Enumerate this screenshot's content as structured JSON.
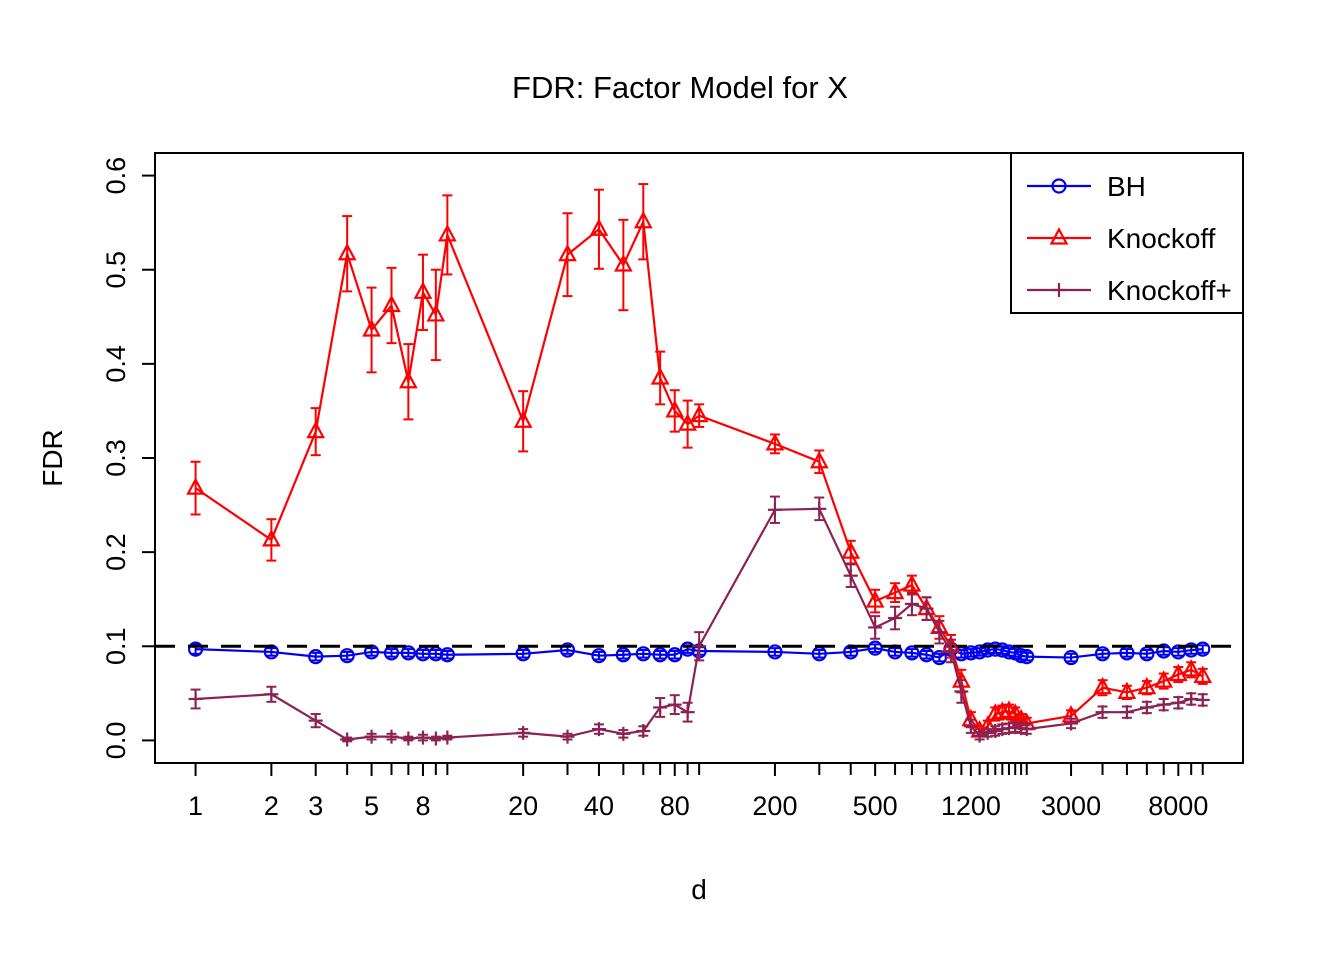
{
  "chart_data": {
    "type": "line",
    "title": "FDR: Factor Model for X",
    "xlabel": "d",
    "ylabel": "FDR",
    "x_scale": "log",
    "xlim": [
      0.69,
      14454
    ],
    "ylim": [
      -0.024,
      0.624
    ],
    "grid": false,
    "y_ticks": [
      {
        "value": 0.0,
        "label": "0.0"
      },
      {
        "value": 0.1,
        "label": "0.1"
      },
      {
        "value": 0.2,
        "label": "0.2"
      },
      {
        "value": 0.3,
        "label": "0.3"
      },
      {
        "value": 0.4,
        "label": "0.4"
      },
      {
        "value": 0.5,
        "label": "0.5"
      },
      {
        "value": 0.6,
        "label": "0.6"
      }
    ],
    "x_ticks_major": [
      {
        "value": 1,
        "label": "1"
      },
      {
        "value": 2,
        "label": "2"
      },
      {
        "value": 3,
        "label": "3"
      },
      {
        "value": 5,
        "label": "5"
      },
      {
        "value": 8,
        "label": "8"
      },
      {
        "value": 20,
        "label": "20"
      },
      {
        "value": 40,
        "label": "40"
      },
      {
        "value": 80,
        "label": "80"
      },
      {
        "value": 200,
        "label": "200"
      },
      {
        "value": 500,
        "label": "500"
      },
      {
        "value": 1200,
        "label": "1200"
      },
      {
        "value": 3000,
        "label": "3000"
      },
      {
        "value": 8000,
        "label": "8000"
      }
    ],
    "x_ticks_minor": [
      4,
      6,
      7,
      9,
      10,
      30,
      50,
      60,
      70,
      90,
      100,
      300,
      400,
      600,
      700,
      800,
      900,
      1000,
      1100,
      1300,
      1400,
      1500,
      1600,
      1700,
      1800,
      1900,
      2000,
      4000,
      5000,
      6000,
      7000,
      9000,
      10000
    ],
    "reference_line": {
      "y": 0.1,
      "style": "dashed",
      "color": "#000000"
    },
    "x": [
      1,
      2,
      3,
      4,
      5,
      6,
      7,
      8,
      9,
      10,
      20,
      30,
      40,
      50,
      60,
      70,
      80,
      90,
      100,
      200,
      300,
      400,
      500,
      600,
      700,
      800,
      900,
      1000,
      1100,
      1200,
      1300,
      1400,
      1500,
      1600,
      1700,
      1800,
      1900,
      2000,
      3000,
      4000,
      5000,
      6000,
      7000,
      8000,
      9000,
      10000
    ],
    "series": [
      {
        "name": "BH",
        "color": "#0000EE",
        "marker": "circle",
        "values": [
          0.097,
          0.094,
          0.089,
          0.09,
          0.094,
          0.093,
          0.093,
          0.092,
          0.092,
          0.091,
          0.092,
          0.096,
          0.09,
          0.091,
          0.092,
          0.091,
          0.091,
          0.097,
          0.095,
          0.094,
          0.092,
          0.094,
          0.098,
          0.094,
          0.093,
          0.091,
          0.088,
          0.097,
          0.092,
          0.093,
          0.094,
          0.096,
          0.097,
          0.096,
          0.094,
          0.093,
          0.09,
          0.089,
          0.088,
          0.092,
          0.093,
          0.092,
          0.095,
          0.094,
          0.096,
          0.097
        ],
        "errors": [
          0.005,
          0.004,
          0.004,
          0.004,
          0.004,
          0.004,
          0.004,
          0.004,
          0.004,
          0.004,
          0.004,
          0.004,
          0.004,
          0.004,
          0.004,
          0.004,
          0.004,
          0.004,
          0.004,
          0.004,
          0.004,
          0.004,
          0.004,
          0.004,
          0.004,
          0.004,
          0.004,
          0.004,
          0.004,
          0.004,
          0.004,
          0.004,
          0.004,
          0.004,
          0.004,
          0.004,
          0.004,
          0.004,
          0.004,
          0.004,
          0.004,
          0.004,
          0.004,
          0.004,
          0.004,
          0.004
        ]
      },
      {
        "name": "Knockoff",
        "color": "#FF0000",
        "marker": "triangle",
        "values": [
          0.268,
          0.213,
          0.328,
          0.517,
          0.436,
          0.462,
          0.381,
          0.476,
          0.452,
          0.537,
          0.339,
          0.516,
          0.543,
          0.505,
          0.551,
          0.385,
          0.35,
          0.336,
          0.345,
          0.315,
          0.296,
          0.2,
          0.148,
          0.157,
          0.165,
          0.14,
          0.12,
          0.1,
          0.063,
          0.022,
          0.01,
          0.015,
          0.028,
          0.03,
          0.031,
          0.028,
          0.022,
          0.018,
          0.026,
          0.056,
          0.051,
          0.056,
          0.063,
          0.07,
          0.075,
          0.068
        ],
        "errors": [
          0.028,
          0.022,
          0.025,
          0.04,
          0.045,
          0.04,
          0.04,
          0.04,
          0.048,
          0.042,
          0.032,
          0.044,
          0.042,
          0.048,
          0.04,
          0.028,
          0.022,
          0.025,
          0.012,
          0.01,
          0.012,
          0.012,
          0.012,
          0.01,
          0.01,
          0.012,
          0.012,
          0.012,
          0.012,
          0.008,
          0.005,
          0.006,
          0.007,
          0.007,
          0.007,
          0.007,
          0.006,
          0.006,
          0.006,
          0.008,
          0.007,
          0.007,
          0.008,
          0.008,
          0.008,
          0.008
        ]
      },
      {
        "name": "Knockoff+",
        "color": "#8B2252",
        "marker": "plus",
        "values": [
          0.044,
          0.049,
          0.021,
          0.001,
          0.004,
          0.004,
          0.002,
          0.003,
          0.002,
          0.003,
          0.008,
          0.004,
          0.012,
          0.007,
          0.01,
          0.035,
          0.038,
          0.03,
          0.1,
          0.245,
          0.246,
          0.175,
          0.12,
          0.13,
          0.145,
          0.14,
          0.115,
          0.095,
          0.052,
          0.015,
          0.005,
          0.008,
          0.01,
          0.012,
          0.013,
          0.014,
          0.013,
          0.012,
          0.018,
          0.03,
          0.03,
          0.035,
          0.038,
          0.04,
          0.044,
          0.043
        ],
        "errors": [
          0.01,
          0.008,
          0.007,
          0.002,
          0.003,
          0.003,
          0.002,
          0.003,
          0.002,
          0.002,
          0.004,
          0.003,
          0.005,
          0.004,
          0.005,
          0.01,
          0.01,
          0.01,
          0.015,
          0.014,
          0.012,
          0.012,
          0.012,
          0.012,
          0.012,
          0.012,
          0.012,
          0.012,
          0.012,
          0.007,
          0.004,
          0.004,
          0.005,
          0.005,
          0.005,
          0.005,
          0.005,
          0.005,
          0.005,
          0.006,
          0.006,
          0.006,
          0.006,
          0.006,
          0.006,
          0.006
        ]
      }
    ],
    "legend": {
      "position": "topright",
      "entries": [
        "BH",
        "Knockoff",
        "Knockoff+"
      ]
    }
  }
}
